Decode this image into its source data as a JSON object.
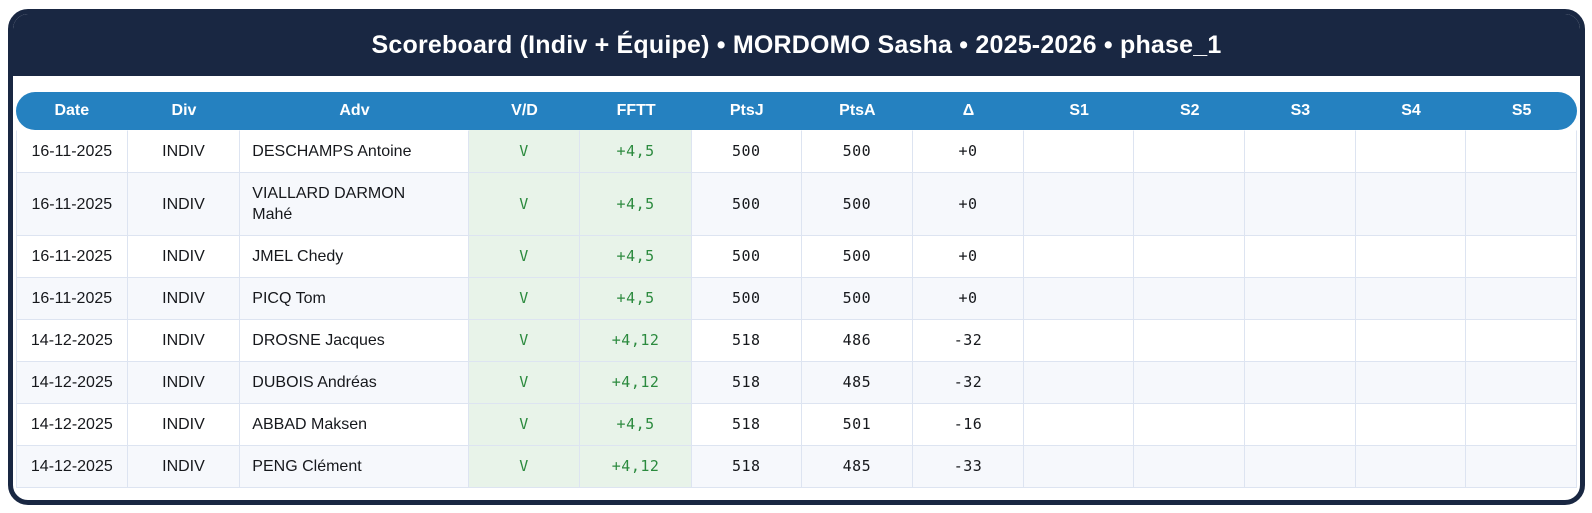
{
  "title": "Scoreboard (Indiv + Équipe) • MORDOMO Sasha • 2025-2026 • phase_1",
  "colors": {
    "frame_navy": "#192742",
    "header_blue": "#2581c0",
    "win_bg": "#e8f3e9",
    "win_text": "#2b8a3e",
    "row_stripe": "#f6f8fc",
    "grid_line": "#dde4f1"
  },
  "table": {
    "columns": [
      {
        "key": "date",
        "label": "Date"
      },
      {
        "key": "div",
        "label": "Div"
      },
      {
        "key": "adv",
        "label": "Adv"
      },
      {
        "key": "vd",
        "label": "V/D",
        "mono": true,
        "win": true
      },
      {
        "key": "fftt",
        "label": "FFTT",
        "mono": true,
        "win": true
      },
      {
        "key": "ptsj",
        "label": "PtsJ",
        "mono": true
      },
      {
        "key": "ptsa",
        "label": "PtsA",
        "mono": true
      },
      {
        "key": "delta",
        "label": "Δ",
        "mono": true
      },
      {
        "key": "s1",
        "label": "S1",
        "mono": true
      },
      {
        "key": "s2",
        "label": "S2",
        "mono": true
      },
      {
        "key": "s3",
        "label": "S3",
        "mono": true
      },
      {
        "key": "s4",
        "label": "S4",
        "mono": true
      },
      {
        "key": "s5",
        "label": "S5",
        "mono": true
      }
    ],
    "rows": [
      {
        "date": "16-11-2025",
        "div": "INDIV",
        "adv": "DESCHAMPS Antoine",
        "vd": "V",
        "fftt": "+4,5",
        "ptsj": "500",
        "ptsa": "500",
        "delta": "+0",
        "s1": "",
        "s2": "",
        "s3": "",
        "s4": "",
        "s5": ""
      },
      {
        "date": "16-11-2025",
        "div": "INDIV",
        "adv": "VIALLARD DARMON Mahé",
        "vd": "V",
        "fftt": "+4,5",
        "ptsj": "500",
        "ptsa": "500",
        "delta": "+0",
        "s1": "",
        "s2": "",
        "s3": "",
        "s4": "",
        "s5": ""
      },
      {
        "date": "16-11-2025",
        "div": "INDIV",
        "adv": "JMEL Chedy",
        "vd": "V",
        "fftt": "+4,5",
        "ptsj": "500",
        "ptsa": "500",
        "delta": "+0",
        "s1": "",
        "s2": "",
        "s3": "",
        "s4": "",
        "s5": ""
      },
      {
        "date": "16-11-2025",
        "div": "INDIV",
        "adv": "PICQ Tom",
        "vd": "V",
        "fftt": "+4,5",
        "ptsj": "500",
        "ptsa": "500",
        "delta": "+0",
        "s1": "",
        "s2": "",
        "s3": "",
        "s4": "",
        "s5": ""
      },
      {
        "date": "14-12-2025",
        "div": "INDIV",
        "adv": "DROSNE Jacques",
        "vd": "V",
        "fftt": "+4,12",
        "ptsj": "518",
        "ptsa": "486",
        "delta": "-32",
        "s1": "",
        "s2": "",
        "s3": "",
        "s4": "",
        "s5": ""
      },
      {
        "date": "14-12-2025",
        "div": "INDIV",
        "adv": "DUBOIS Andréas",
        "vd": "V",
        "fftt": "+4,12",
        "ptsj": "518",
        "ptsa": "485",
        "delta": "-32",
        "s1": "",
        "s2": "",
        "s3": "",
        "s4": "",
        "s5": ""
      },
      {
        "date": "14-12-2025",
        "div": "INDIV",
        "adv": "ABBAD Maksen",
        "vd": "V",
        "fftt": "+4,5",
        "ptsj": "518",
        "ptsa": "501",
        "delta": "-16",
        "s1": "",
        "s2": "",
        "s3": "",
        "s4": "",
        "s5": ""
      },
      {
        "date": "14-12-2025",
        "div": "INDIV",
        "adv": "PENG Clément",
        "vd": "V",
        "fftt": "+4,12",
        "ptsj": "518",
        "ptsa": "485",
        "delta": "-33",
        "s1": "",
        "s2": "",
        "s3": "",
        "s4": "",
        "s5": ""
      }
    ]
  }
}
